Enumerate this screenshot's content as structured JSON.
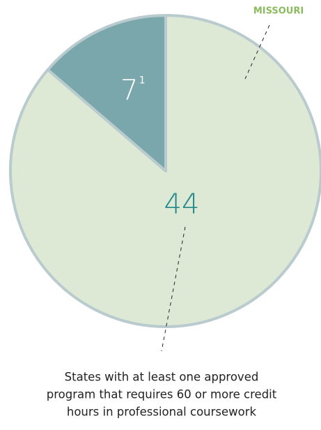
{
  "chart_data": {
    "type": "pie",
    "values": [
      44,
      7
    ],
    "colors": [
      "#dde9d4",
      "#7aa7ab"
    ],
    "label_colors": [
      "#22898a",
      "#ffffff"
    ],
    "footnote_marks": [
      null,
      "1"
    ],
    "annotations": [
      {
        "text": "MISSOURI",
        "color": "#8bbb5e"
      },
      {
        "lines": [
          "States with at least one approved",
          "program that requires 60 or more credit",
          "hours in professional coursework"
        ],
        "color": "#222222"
      }
    ]
  }
}
